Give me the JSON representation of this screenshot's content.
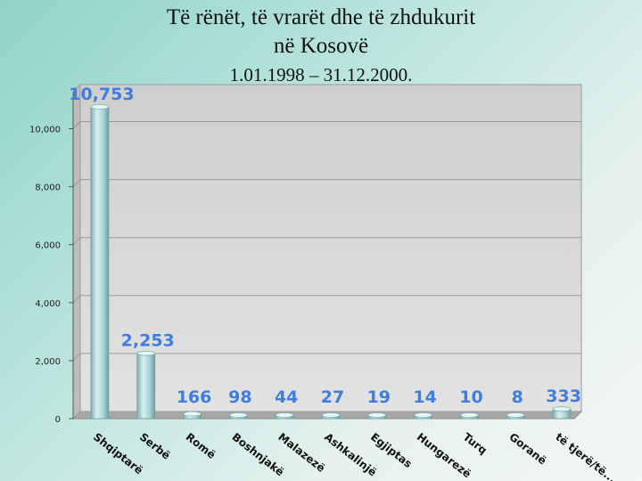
{
  "title": {
    "line1": "Të rënët, të vrarët dhe të zhdukurit",
    "line2": "në Kosovë",
    "line3": "1.01.1998 – 31.12.2000."
  },
  "colors": {
    "bar": "#a9d3d6",
    "bar_dark": "#6e9ea2",
    "plot_bg": "#d0d0d0",
    "data_label": "#3f7ee0"
  },
  "chart_data": {
    "type": "bar",
    "title": "Të rënët, të vrarët dhe të zhdukurit në Kosovë 1.01.1998 – 31.12.2000.",
    "categories": [
      "Shqiptarë",
      "Serbë",
      "Romë",
      "Boshnjakë",
      "Malazezë",
      "Ashkalinjë",
      "Egjiptas",
      "Hungarezë",
      "Turq",
      "Goranë",
      "të tjerë/të..."
    ],
    "values": [
      10753,
      2253,
      166,
      98,
      44,
      27,
      19,
      14,
      10,
      8,
      333
    ],
    "data_labels": [
      "10,753",
      "2,253",
      "166",
      "98",
      "44",
      "27",
      "19",
      "14",
      "10",
      "8",
      "333"
    ],
    "yticks": [
      0,
      2000,
      4000,
      6000,
      8000,
      10000
    ],
    "ytick_labels": [
      "0",
      "2,000",
      "4,000",
      "6,000",
      "8,000",
      "10,000"
    ],
    "ylim": [
      0,
      11500
    ],
    "xlabel": "",
    "ylabel": "",
    "grid": true,
    "legend": "none"
  }
}
